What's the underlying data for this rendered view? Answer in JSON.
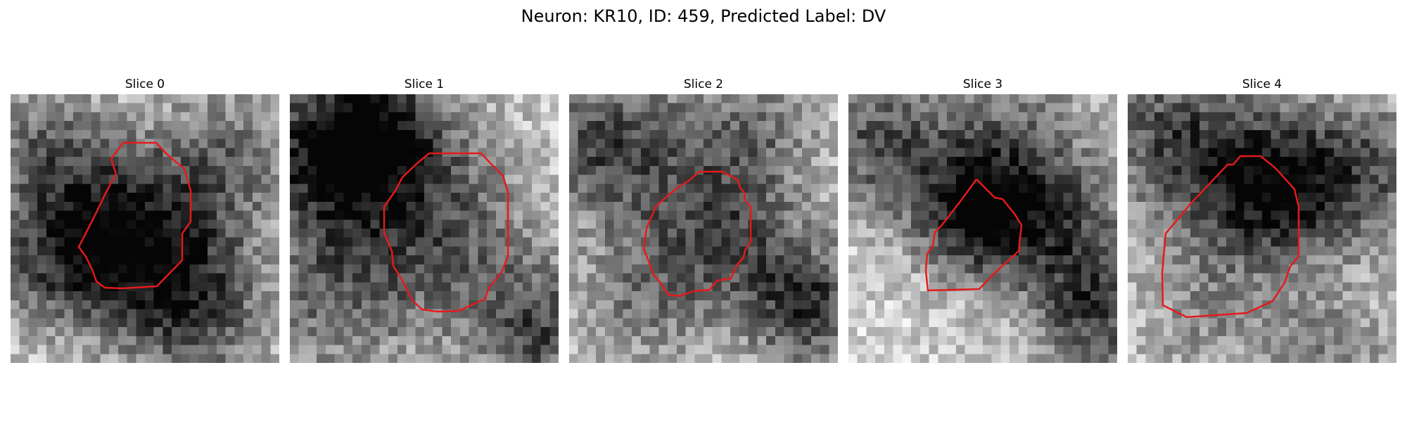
{
  "figure": {
    "title": "Neuron: KR10, ID: 459, Predicted Label: DV"
  },
  "panels": [
    {
      "title": "Slice 0",
      "image": "grayscale-microscopy-patch",
      "contour_color": "#e41a1c"
    },
    {
      "title": "Slice 1",
      "image": "grayscale-microscopy-patch",
      "contour_color": "#e41a1c"
    },
    {
      "title": "Slice 2",
      "image": "grayscale-microscopy-patch",
      "contour_color": "#e41a1c"
    },
    {
      "title": "Slice 3",
      "image": "grayscale-microscopy-patch",
      "contour_color": "#e41a1c"
    },
    {
      "title": "Slice 4",
      "image": "grayscale-microscopy-patch",
      "contour_color": "#e41a1c"
    }
  ]
}
